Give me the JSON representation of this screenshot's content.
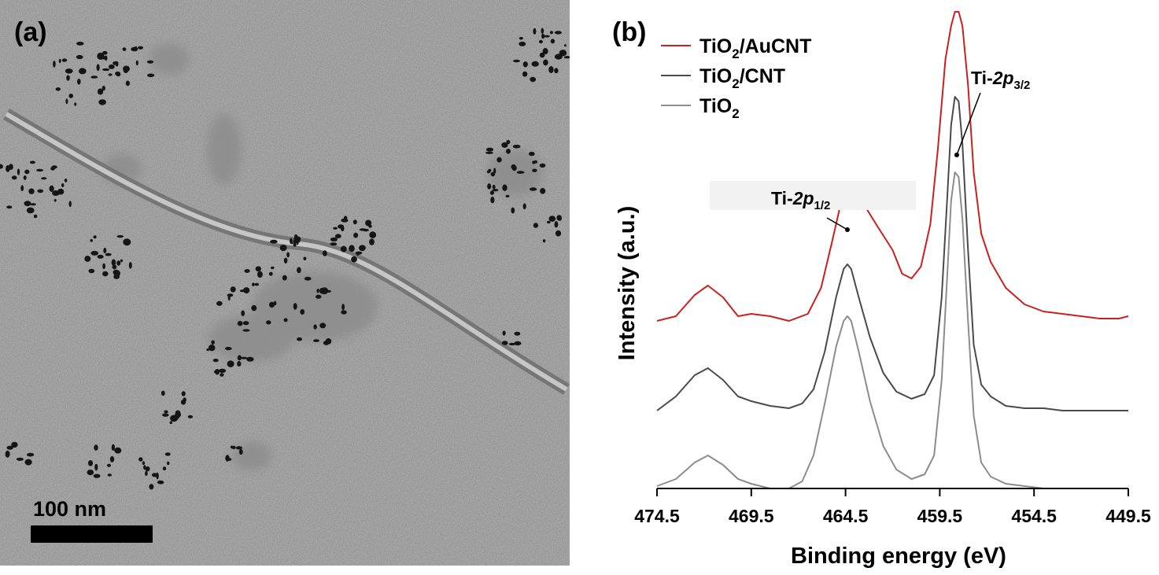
{
  "panel_a": {
    "label": "(a)",
    "scale_bar": {
      "label": "100 nm"
    }
  },
  "panel_b": {
    "label": "(b)"
  },
  "chart_data": {
    "type": "line",
    "xlabel": "Binding energy (eV)",
    "ylabel": "Intensity (a.u.)",
    "xlim": [
      474.5,
      449.5
    ],
    "x_reversed": true,
    "xticks": [
      "474.5",
      "469.5",
      "464.5",
      "459.5",
      "454.5",
      "449.5"
    ],
    "yticks_shown": false,
    "grid": false,
    "legend_position": "top-left",
    "annotations": [
      {
        "base": "Ti-",
        "italic": "2p",
        "sub": "1/2",
        "x": 464.4,
        "series": "TiO2/AuCNT"
      },
      {
        "base": "Ti-",
        "italic": "2p",
        "sub": "3/2",
        "x": 458.6,
        "series": "TiO2/CNT"
      }
    ],
    "series": [
      {
        "name": "TiO2/AuCNT",
        "name_base": "TiO",
        "name_sub": "2",
        "name_rest": "/AuCNT",
        "color": "#cc1f1f",
        "x": [
          474.5,
          473.5,
          472.5,
          471.8,
          471.0,
          470.2,
          469.5,
          468.5,
          467.5,
          466.5,
          465.8,
          465.2,
          464.8,
          464.4,
          464.0,
          463.5,
          462.8,
          462.0,
          461.5,
          461.0,
          460.5,
          460.0,
          459.6,
          459.2,
          458.9,
          458.7,
          458.5,
          458.3,
          458.0,
          457.7,
          457.3,
          456.8,
          456.0,
          455.0,
          454.0,
          453.0,
          452.0,
          451.0,
          450.0,
          449.5
        ],
        "y": [
          0.05,
          0.07,
          0.16,
          0.2,
          0.15,
          0.07,
          0.08,
          0.07,
          0.05,
          0.08,
          0.19,
          0.39,
          0.53,
          0.62,
          0.61,
          0.54,
          0.45,
          0.35,
          0.25,
          0.23,
          0.28,
          0.46,
          0.78,
          1.16,
          1.3,
          1.36,
          1.36,
          1.3,
          1.05,
          0.68,
          0.42,
          0.3,
          0.19,
          0.12,
          0.09,
          0.08,
          0.07,
          0.06,
          0.06,
          0.07
        ]
      },
      {
        "name": "TiO2/CNT",
        "name_base": "TiO",
        "name_sub": "2",
        "name_rest": "/CNT",
        "color": "#4a4a4a",
        "x": [
          474.5,
          473.5,
          472.5,
          471.8,
          471.0,
          470.2,
          469.5,
          468.5,
          467.5,
          466.8,
          466.2,
          465.6,
          465.0,
          464.6,
          464.4,
          464.2,
          463.8,
          463.2,
          462.5,
          461.8,
          461.0,
          460.3,
          459.8,
          459.4,
          459.1,
          458.9,
          458.7,
          458.5,
          458.3,
          458.0,
          457.7,
          457.3,
          456.8,
          456.0,
          455.0,
          454.0,
          453.0,
          452.0,
          451.0,
          450.0,
          449.5
        ],
        "y": [
          -0.33,
          -0.27,
          -0.18,
          -0.15,
          -0.2,
          -0.27,
          -0.29,
          -0.31,
          -0.32,
          -0.3,
          -0.24,
          -0.08,
          0.15,
          0.27,
          0.29,
          0.27,
          0.15,
          -0.02,
          -0.17,
          -0.25,
          -0.28,
          -0.26,
          -0.18,
          0.15,
          0.58,
          0.88,
          1.0,
          0.98,
          0.8,
          0.35,
          -0.05,
          -0.22,
          -0.27,
          -0.31,
          -0.32,
          -0.32,
          -0.33,
          -0.33,
          -0.33,
          -0.33,
          -0.33
        ]
      },
      {
        "name": "TiO2",
        "name_base": "TiO",
        "name_sub": "2",
        "name_rest": "",
        "color": "#8c8c8c",
        "x": [
          474.5,
          473.5,
          472.5,
          471.8,
          471.0,
          470.2,
          469.5,
          468.5,
          467.5,
          466.8,
          466.2,
          465.6,
          465.0,
          464.6,
          464.4,
          464.2,
          463.8,
          463.2,
          462.5,
          461.8,
          461.0,
          460.3,
          459.8,
          459.4,
          459.1,
          458.9,
          458.7,
          458.5,
          458.3,
          458.0,
          457.7,
          457.3,
          456.8,
          456.0,
          455.0,
          454.0,
          453.0,
          452.0,
          451.0,
          450.0,
          449.5
        ],
        "y": [
          -0.65,
          -0.62,
          -0.55,
          -0.52,
          -0.56,
          -0.62,
          -0.64,
          -0.66,
          -0.66,
          -0.63,
          -0.52,
          -0.3,
          -0.06,
          0.05,
          0.07,
          0.05,
          -0.08,
          -0.29,
          -0.48,
          -0.58,
          -0.62,
          -0.6,
          -0.52,
          -0.2,
          0.25,
          0.56,
          0.68,
          0.66,
          0.48,
          0.05,
          -0.35,
          -0.55,
          -0.61,
          -0.64,
          -0.65,
          -0.66,
          -0.66,
          -0.66,
          -0.66,
          -0.66,
          -0.66
        ]
      }
    ]
  }
}
